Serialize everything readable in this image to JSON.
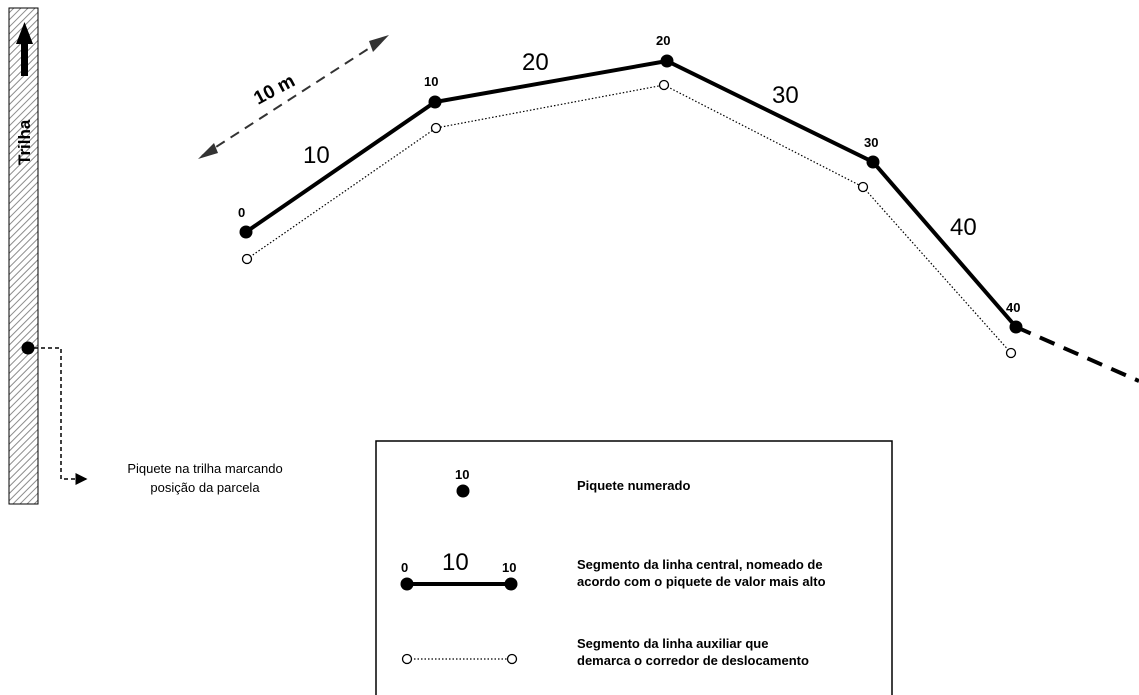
{
  "trail": {
    "label": "Trilha",
    "note_line1": "Piquete na trilha marcando",
    "note_line2": "posição da parcela"
  },
  "scale": {
    "label": "10 m"
  },
  "stakes": [
    "0",
    "10",
    "20",
    "30",
    "40"
  ],
  "segments": [
    "10",
    "20",
    "30",
    "40"
  ],
  "legend": {
    "stake_value": "10",
    "stake_text": "Piquete numerado",
    "central_start": "0",
    "central_mid": "10",
    "central_end": "10",
    "central_text_line1": "Segmento da linha central, nomeado de",
    "central_text_line2": "acordo com o piquete de valor mais alto",
    "aux_text_line1": "Segmento da linha auxiliar que",
    "aux_text_line2": "demarca o corredor de deslocamento"
  },
  "colors": {
    "line": "#000000",
    "background": "#ffffff",
    "hatch": "#9a9a9a"
  }
}
